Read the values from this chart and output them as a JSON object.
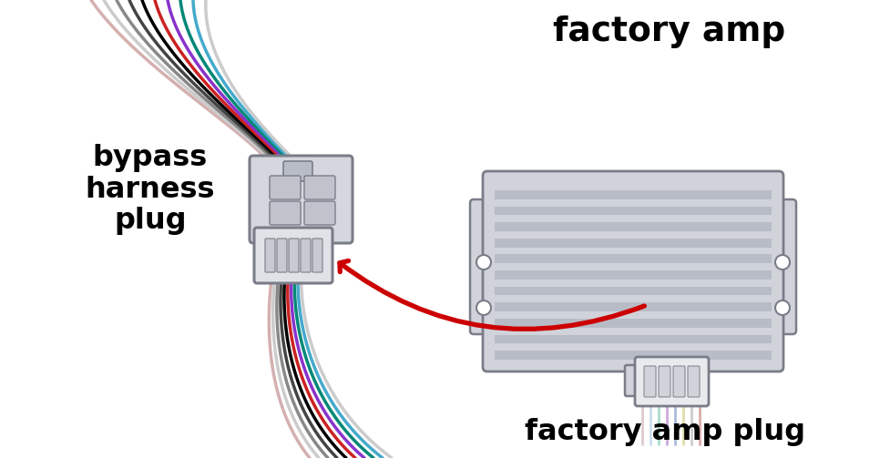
{
  "bg_color": "#ffffff",
  "label_bypass": "bypass\nharness\nplug",
  "label_factory_amp": "factory amp",
  "label_factory_amp_plug": "factory amp plug",
  "arrow_color": "#cc0000",
  "connector_color": "#d4d7de",
  "connector_outline": "#7a7d88",
  "connector_inner": "#c0c3cc",
  "amp_body_color": "#d0d3da",
  "amp_stripe_light": "#dcdfe6",
  "amp_stripe_dark": "#b8bcc6",
  "amp_outline": "#7a7d88",
  "wire_colors_upper": [
    "#d4b0b0",
    "#cccccc",
    "#888888",
    "#444444",
    "#222222",
    "#000000",
    "#cc2222",
    "#8833cc",
    "#008877",
    "#44aacc"
  ],
  "wire_colors_lower": [
    "#d4b0b0",
    "#cccccc",
    "#008877",
    "#8833cc",
    "#44aacc",
    "#000000",
    "#888888",
    "#cc2222",
    "#444444",
    "#222222"
  ],
  "plug_wire_colors": [
    "#ddcccc",
    "#ccddee",
    "#aaddcc",
    "#ccaadd",
    "#aabbdd",
    "#ddddaa",
    "#cccccc",
    "#ddaaaa"
  ]
}
